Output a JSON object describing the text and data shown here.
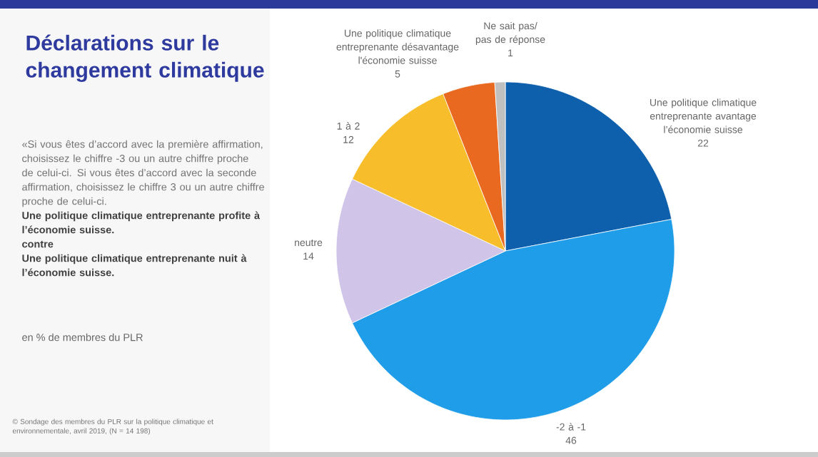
{
  "chart_data": {
    "type": "pie",
    "title": "Déclarations sur le changement climatique",
    "subtitle": "«Si vous êtes d’accord avec la première affirmation, choisissez le chiffre -3 ou un autre chiffre proche de celui-ci. Si vous êtes d’accord avec la seconde affirmation, choisissez le chiffre 3 ou un autre chiffre proche de celui-ci.",
    "annotations": [
      "Une politique climatique entreprenante profite à l’économie suisse.",
      "contre",
      "Une politique climatique entreprenante nuit à l’économie suisse.",
      "en % de membres du PLR",
      "© Sondage des membres du PLR sur la politique climatique et environnementale, avril 2019, (N = 14 198)"
    ],
    "categories": [
      "Une politique climatique entreprenante avantage l’économie suisse",
      "-2 à -1",
      "neutre",
      "1 à 2",
      "Une politique climatique entreprenante désavantage l'économie suisse",
      "Ne sait pas/ pas de réponse"
    ],
    "values": [
      22,
      46,
      14,
      12,
      5,
      1
    ],
    "colors": [
      "#0e5fac",
      "#1f9de8",
      "#d0c4e8",
      "#f8bd2a",
      "#e8691f",
      "#c0c0c0"
    ],
    "data_labels": true
  }
}
